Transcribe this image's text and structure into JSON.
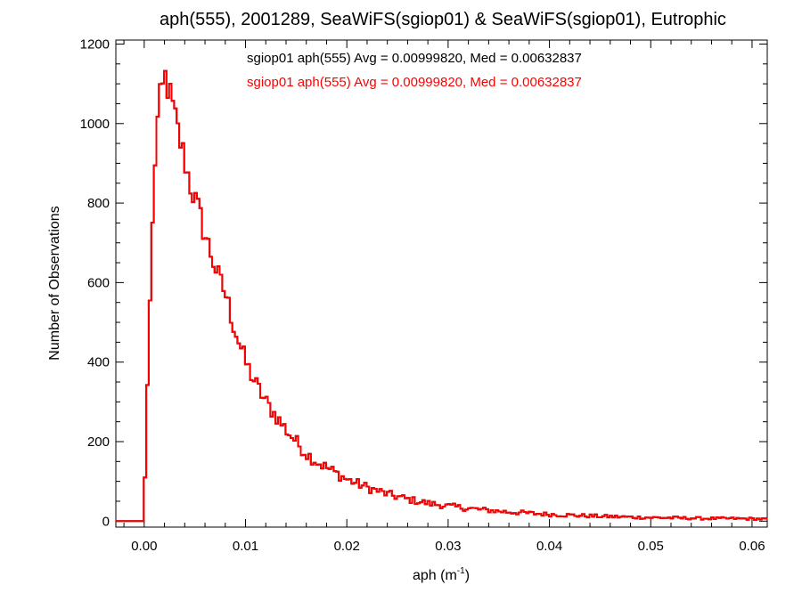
{
  "chart_data": {
    "type": "histogram-step",
    "title": "aph(555), 2001289, SeaWiFS(sgiop01) & SeaWiFS(sgiop01), Eutrophic",
    "xlabel": "aph (m",
    "xlabel_sup": "-1",
    "xlabel_close": ")",
    "ylabel": "Number of Observations",
    "xlim": [
      -0.0028,
      0.0615
    ],
    "ylim": [
      -15,
      1210
    ],
    "x_ticks": [
      0.0,
      0.01,
      0.02,
      0.03,
      0.04,
      0.05,
      0.06
    ],
    "x_tick_labels": [
      "0.00",
      "0.01",
      "0.02",
      "0.03",
      "0.04",
      "0.05",
      "0.06"
    ],
    "y_ticks": [
      0,
      200,
      400,
      600,
      800,
      1000,
      1200
    ],
    "y_tick_labels": [
      "0",
      "200",
      "400",
      "600",
      "800",
      "1000",
      "1200"
    ],
    "bin_width": 0.00025,
    "bin_start": -0.0028,
    "legend": [
      {
        "text": "sgiop01 aph(555) Avg = 0.00999820, Med = 0.00632837",
        "color": "#000000"
      },
      {
        "text": "sgiop01 aph(555) Avg = 0.00999820, Med = 0.00632837",
        "color": "#ff0000"
      }
    ],
    "series_colors": [
      "#000000",
      "#ff0000"
    ],
    "profile": [
      [
        -0.0028,
        0
      ],
      [
        -0.0001,
        0
      ],
      [
        0.0,
        40
      ],
      [
        0.0003,
        320
      ],
      [
        0.0005,
        500
      ],
      [
        0.0008,
        720
      ],
      [
        0.001,
        880
      ],
      [
        0.0013,
        1000
      ],
      [
        0.0015,
        1050
      ],
      [
        0.0018,
        1080
      ],
      [
        0.002,
        1125
      ],
      [
        0.0023,
        1095
      ],
      [
        0.0026,
        1065
      ],
      [
        0.003,
        1020
      ],
      [
        0.0035,
        960
      ],
      [
        0.004,
        910
      ],
      [
        0.0045,
        850
      ],
      [
        0.005,
        810
      ],
      [
        0.0055,
        770
      ],
      [
        0.006,
        720
      ],
      [
        0.0065,
        680
      ],
      [
        0.007,
        640
      ],
      [
        0.0075,
        600
      ],
      [
        0.008,
        575
      ],
      [
        0.0085,
        525
      ],
      [
        0.009,
        480
      ],
      [
        0.0095,
        440
      ],
      [
        0.01,
        400
      ],
      [
        0.011,
        345
      ],
      [
        0.012,
        300
      ],
      [
        0.013,
        265
      ],
      [
        0.014,
        230
      ],
      [
        0.015,
        200
      ],
      [
        0.016,
        170
      ],
      [
        0.017,
        150
      ],
      [
        0.018,
        135
      ],
      [
        0.019,
        120
      ],
      [
        0.02,
        105
      ],
      [
        0.022,
        85
      ],
      [
        0.024,
        68
      ],
      [
        0.026,
        55
      ],
      [
        0.028,
        45
      ],
      [
        0.03,
        38
      ],
      [
        0.032,
        32
      ],
      [
        0.034,
        27
      ],
      [
        0.036,
        23
      ],
      [
        0.038,
        20
      ],
      [
        0.04,
        17
      ],
      [
        0.045,
        12
      ],
      [
        0.05,
        9
      ],
      [
        0.055,
        7
      ],
      [
        0.06,
        6
      ],
      [
        0.0615,
        5
      ]
    ]
  }
}
